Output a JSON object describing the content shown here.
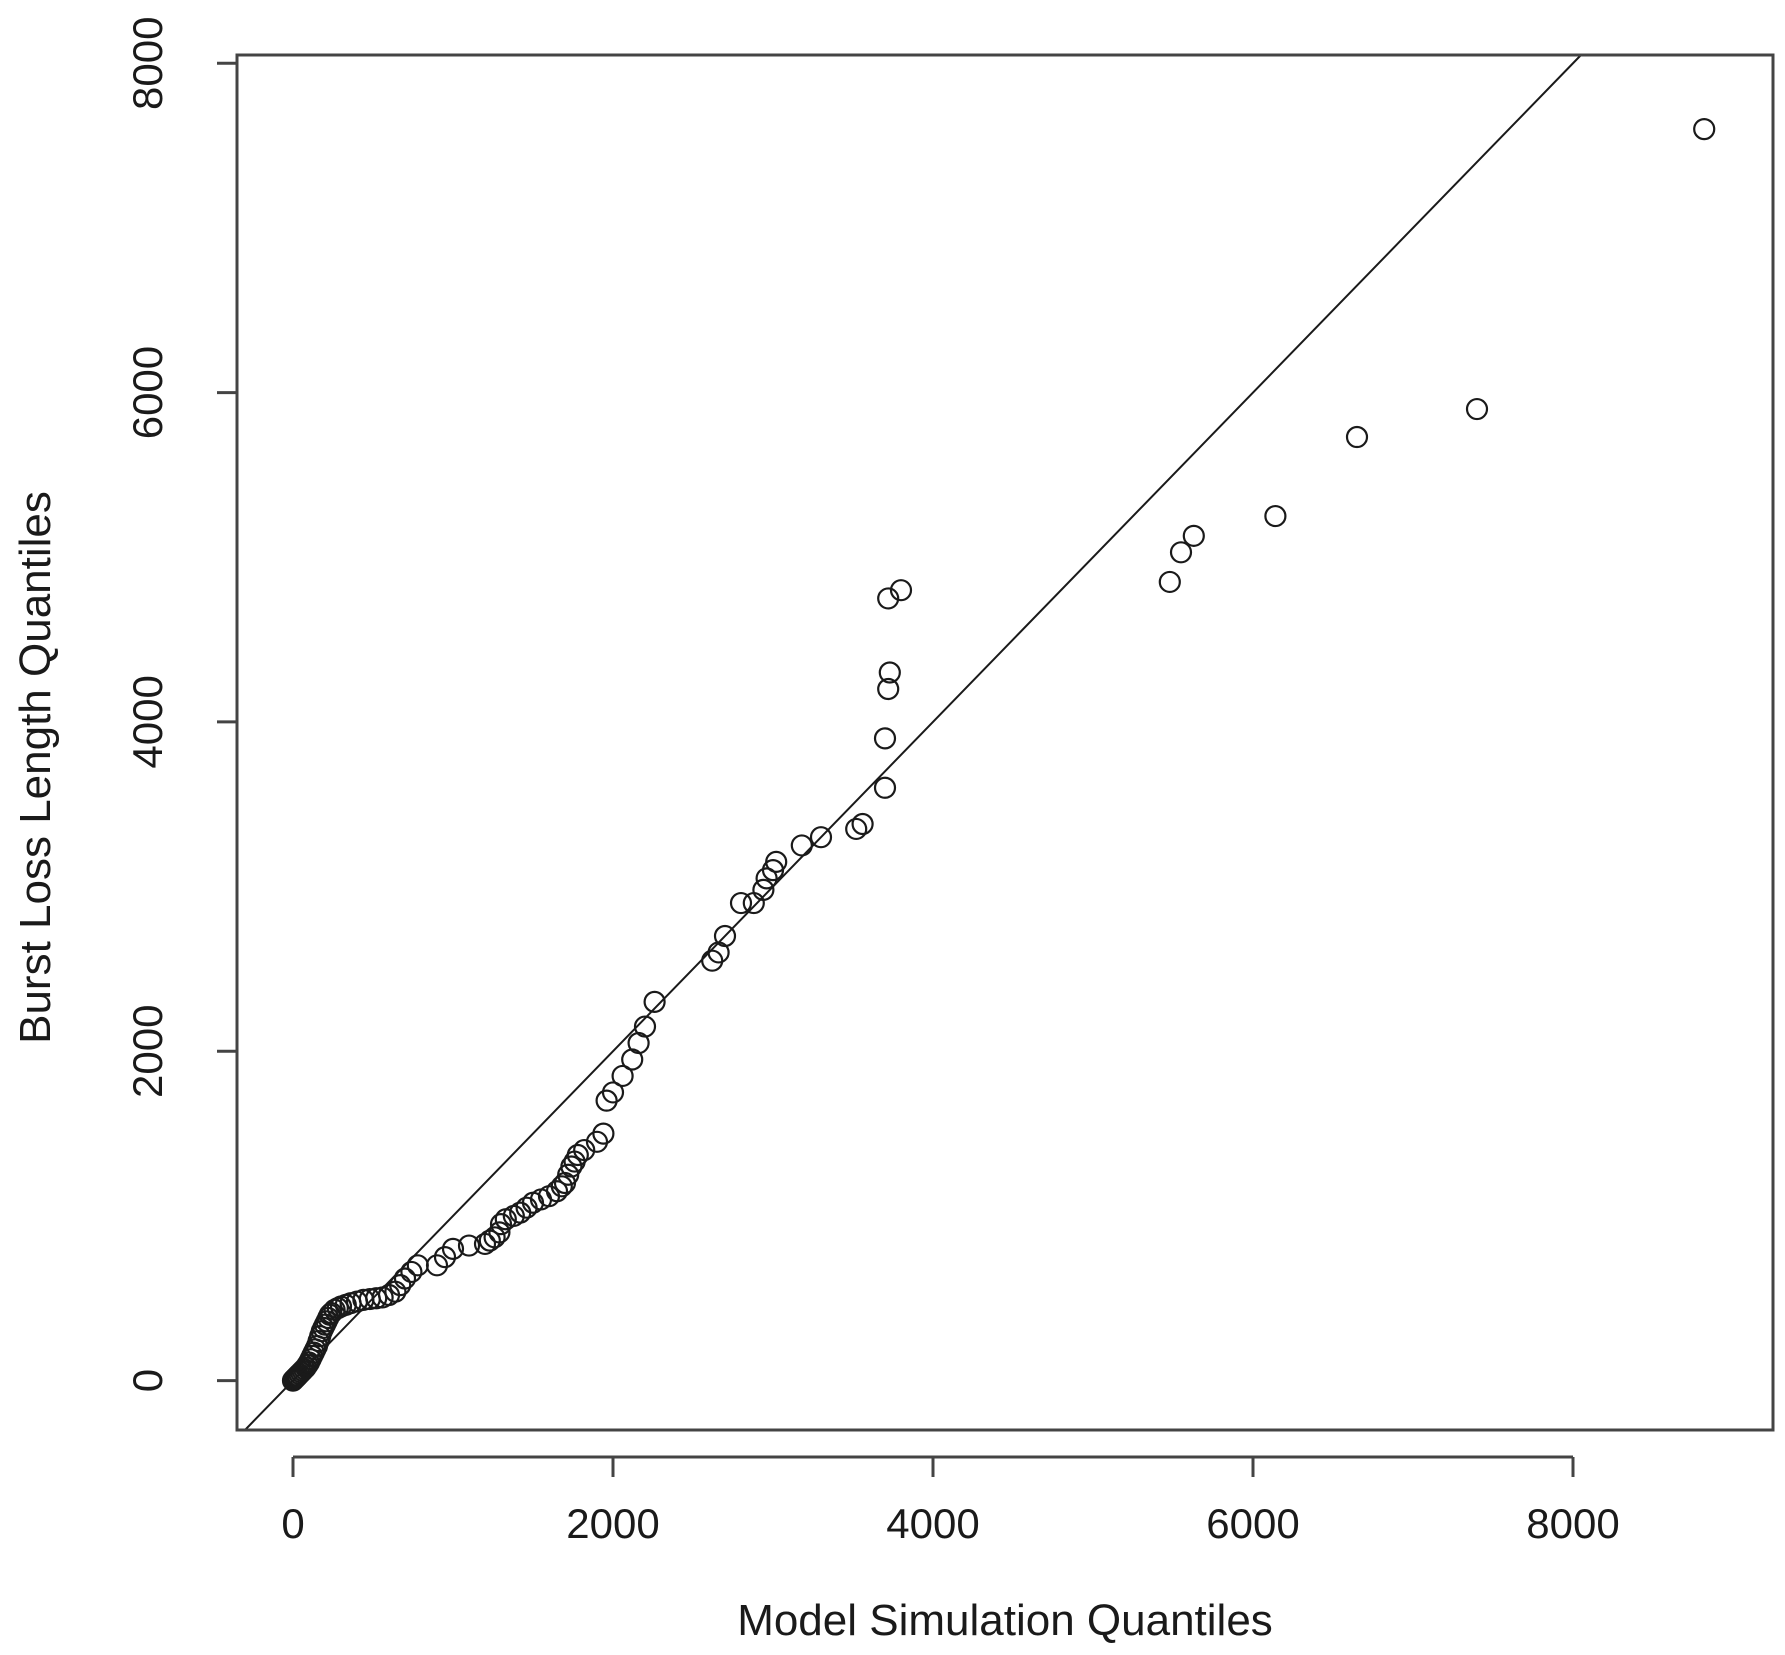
{
  "chart_data": {
    "type": "scatter",
    "title": "",
    "xlabel": "Model Simulation Quantiles",
    "ylabel": "Burst Loss Length Quantiles",
    "xlim": [
      -350,
      9250
    ],
    "ylim": [
      -300,
      8050
    ],
    "xticks": [
      0,
      2000,
      4000,
      6000,
      8000
    ],
    "yticks": [
      0,
      2000,
      4000,
      6000,
      8000
    ],
    "xtick_labels": [
      "0",
      "2000",
      "4000",
      "6000",
      "8000"
    ],
    "ytick_labels": [
      "0",
      "2000",
      "4000",
      "6000",
      "8000"
    ],
    "grid": false,
    "reference_line": {
      "slope": 1,
      "intercept": 0
    },
    "series": [
      {
        "marker": "open-circle",
        "points": [
          [
            0,
            0
          ],
          [
            5,
            5
          ],
          [
            10,
            10
          ],
          [
            15,
            15
          ],
          [
            20,
            20
          ],
          [
            25,
            25
          ],
          [
            30,
            30
          ],
          [
            40,
            40
          ],
          [
            50,
            50
          ],
          [
            60,
            60
          ],
          [
            70,
            70
          ],
          [
            80,
            80
          ],
          [
            90,
            95
          ],
          [
            100,
            110
          ],
          [
            110,
            130
          ],
          [
            120,
            150
          ],
          [
            130,
            170
          ],
          [
            140,
            190
          ],
          [
            150,
            210
          ],
          [
            160,
            240
          ],
          [
            170,
            270
          ],
          [
            180,
            300
          ],
          [
            190,
            320
          ],
          [
            200,
            340
          ],
          [
            210,
            360
          ],
          [
            220,
            380
          ],
          [
            230,
            400
          ],
          [
            240,
            410
          ],
          [
            260,
            430
          ],
          [
            280,
            440
          ],
          [
            300,
            450
          ],
          [
            330,
            460
          ],
          [
            360,
            470
          ],
          [
            400,
            480
          ],
          [
            440,
            490
          ],
          [
            480,
            495
          ],
          [
            520,
            500
          ],
          [
            560,
            505
          ],
          [
            600,
            520
          ],
          [
            640,
            540
          ],
          [
            670,
            580
          ],
          [
            700,
            620
          ],
          [
            740,
            660
          ],
          [
            780,
            700
          ],
          [
            900,
            700
          ],
          [
            950,
            750
          ],
          [
            1000,
            800
          ],
          [
            1100,
            820
          ],
          [
            1200,
            830
          ],
          [
            1230,
            850
          ],
          [
            1260,
            870
          ],
          [
            1290,
            900
          ],
          [
            1300,
            950
          ],
          [
            1330,
            980
          ],
          [
            1380,
            1000
          ],
          [
            1420,
            1020
          ],
          [
            1460,
            1050
          ],
          [
            1500,
            1080
          ],
          [
            1550,
            1100
          ],
          [
            1600,
            1120
          ],
          [
            1650,
            1150
          ],
          [
            1680,
            1180
          ],
          [
            1700,
            1200
          ],
          [
            1720,
            1250
          ],
          [
            1740,
            1300
          ],
          [
            1760,
            1330
          ],
          [
            1780,
            1370
          ],
          [
            1820,
            1400
          ],
          [
            1900,
            1450
          ],
          [
            1940,
            1500
          ],
          [
            1960,
            1700
          ],
          [
            2000,
            1750
          ],
          [
            2060,
            1850
          ],
          [
            2120,
            1950
          ],
          [
            2160,
            2050
          ],
          [
            2200,
            2150
          ],
          [
            2260,
            2300
          ],
          [
            2620,
            2550
          ],
          [
            2660,
            2600
          ],
          [
            2700,
            2700
          ],
          [
            2800,
            2900
          ],
          [
            2880,
            2900
          ],
          [
            2940,
            2980
          ],
          [
            2960,
            3050
          ],
          [
            3000,
            3100
          ],
          [
            3020,
            3150
          ],
          [
            3180,
            3250
          ],
          [
            3300,
            3300
          ],
          [
            3520,
            3350
          ],
          [
            3560,
            3380
          ],
          [
            3700,
            3600
          ],
          [
            3700,
            3900
          ],
          [
            3720,
            4200
          ],
          [
            3730,
            4300
          ],
          [
            3720,
            4750
          ],
          [
            3800,
            4800
          ],
          [
            5480,
            4850
          ],
          [
            5550,
            5030
          ],
          [
            5630,
            5130
          ],
          [
            6140,
            5250
          ],
          [
            6650,
            5730
          ],
          [
            7400,
            5900
          ],
          [
            8820,
            7600
          ]
        ]
      }
    ]
  }
}
